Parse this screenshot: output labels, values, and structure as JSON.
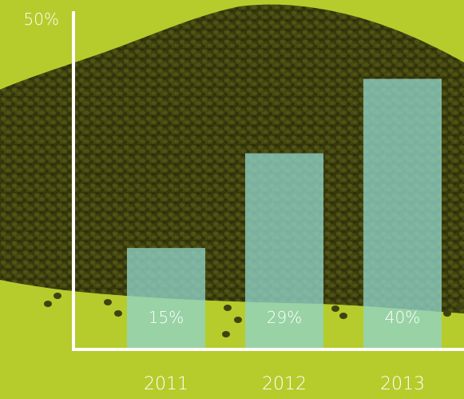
{
  "chart_data": {
    "type": "bar",
    "categories": [
      "2011",
      "2012",
      "2013"
    ],
    "values": [
      15,
      29,
      40
    ],
    "value_labels": [
      "15%",
      "29%",
      "40%"
    ],
    "ylim": [
      0,
      50
    ],
    "ymax_label": "50%",
    "grid": false,
    "legend": "none",
    "colors": {
      "background": "#b5cc2c",
      "pile": "#3f4210",
      "pile_highlight": "#5a5d16",
      "bar": "#8fd3c8",
      "axis": "#ffffff",
      "text": "#ffffff"
    }
  }
}
